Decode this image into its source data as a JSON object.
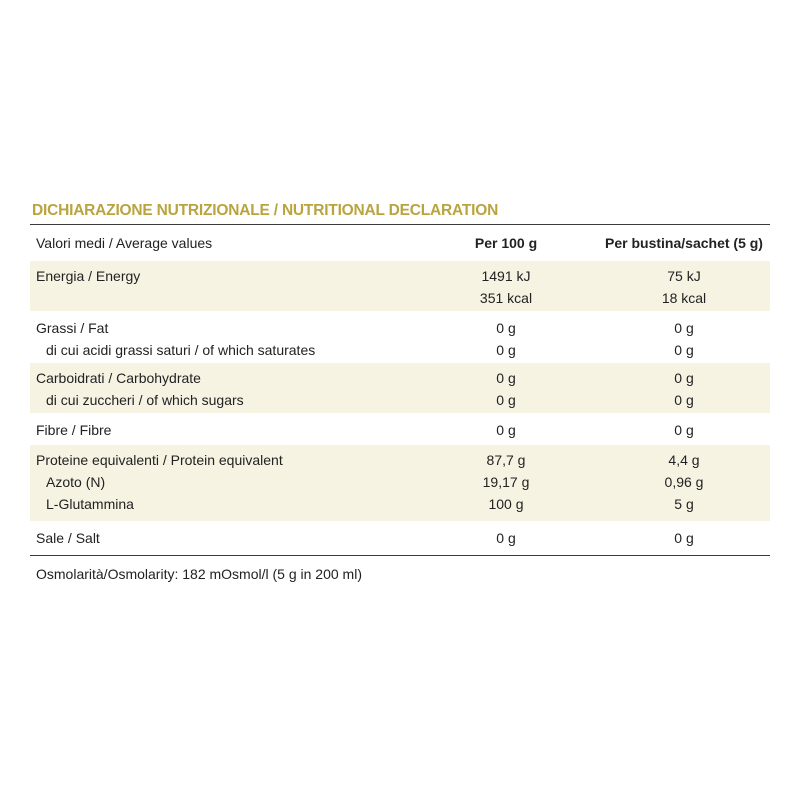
{
  "title": "DICHIARAZIONE NUTRIZIONALE / NUTRITIONAL DECLARATION",
  "header": {
    "label": "Valori medi / Average values",
    "col1": "Per 100 g",
    "col2": "Per bustina/sachet (5 g)"
  },
  "rows": [
    {
      "shaded": true,
      "lines": [
        {
          "label": "Energia / Energy",
          "per100": "1491 kJ",
          "sachet": "75 kJ"
        },
        {
          "label": "",
          "per100": "351 kcal",
          "sachet": "18 kcal"
        }
      ]
    },
    {
      "shaded": false,
      "lines": [
        {
          "label": "Grassi / Fat",
          "per100": "0 g",
          "sachet": "0 g"
        },
        {
          "label": "di cui acidi grassi saturi / of which saturates",
          "per100": "0 g",
          "sachet": "0 g"
        }
      ]
    },
    {
      "shaded": true,
      "lines": [
        {
          "label": "Carboidrati / Carbohydrate",
          "per100": "0 g",
          "sachet": "0 g"
        },
        {
          "label": "di cui zuccheri / of which sugars",
          "per100": "0 g",
          "sachet": "0 g"
        }
      ]
    },
    {
      "shaded": false,
      "lines": [
        {
          "label": "Fibre / Fibre",
          "per100": "0 g",
          "sachet": "0 g"
        }
      ]
    },
    {
      "shaded": true,
      "lines": [
        {
          "label": "Proteine equivalenti / Protein equivalent",
          "per100": "87,7 g",
          "sachet": "4,4 g"
        },
        {
          "label": "Azoto (N)",
          "per100": "19,17 g",
          "sachet": "0,96 g"
        },
        {
          "label": "L-Glutammina",
          "per100": "100 g",
          "sachet": "5 g"
        }
      ]
    },
    {
      "shaded": false,
      "lines": [
        {
          "label": "Sale / Salt",
          "per100": "0 g",
          "sachet": "0 g"
        }
      ]
    }
  ],
  "footnote": "Osmolarità/Osmolarity: 182 mOsmol/l (5 g in 200 ml)"
}
